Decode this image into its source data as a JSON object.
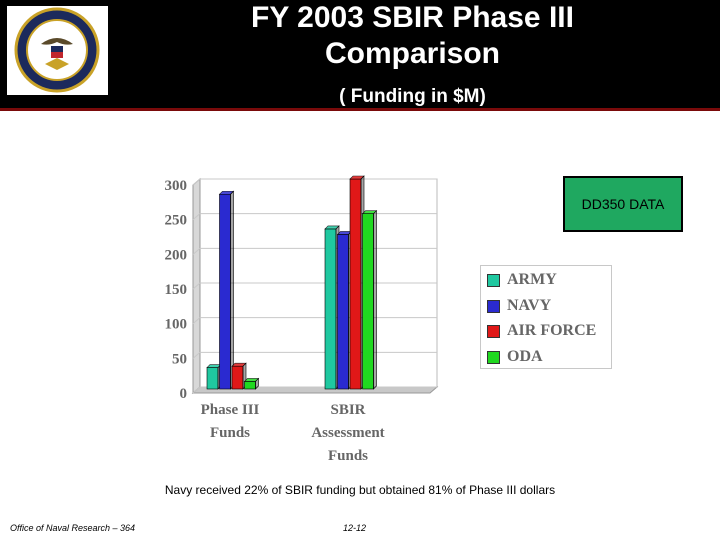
{
  "header": {
    "title_line1": "FY 2003 SBIR Phase III",
    "title_line2": "Comparison",
    "subtitle": "( Funding in $M)",
    "seal_text": "UNITED STATES NAVY OFFICE OF NAVAL RESEARCH"
  },
  "badge": {
    "label": "DD350 DATA"
  },
  "note": "Navy received 22% of SBIR funding but obtained 81% of Phase III dollars",
  "footer": {
    "org": "Office of Naval Research – 364",
    "page": "12-12"
  },
  "colors": {
    "ARMY": "#1fc8a0",
    "NAVY": "#2a2ad0",
    "AIR FORCE": "#e01818",
    "ODA": "#20d820",
    "badge": "#1fa860",
    "header_rule": "#7a0a0a"
  },
  "chart_data": {
    "type": "bar",
    "categories": [
      [
        "Phase III",
        "Funds"
      ],
      [
        "SBIR",
        "Assessment",
        "Funds"
      ]
    ],
    "series": [
      {
        "name": "ARMY",
        "values": [
          28,
          228
        ]
      },
      {
        "name": "NAVY",
        "values": [
          278,
          220
        ]
      },
      {
        "name": "AIR FORCE",
        "values": [
          30,
          300
        ]
      },
      {
        "name": "ODA",
        "values": [
          8,
          250
        ]
      }
    ],
    "yticks": [
      "0",
      "50",
      "100",
      "150",
      "200",
      "250",
      "300"
    ],
    "ylim": [
      0,
      300
    ],
    "grid": true,
    "legend_position": "right",
    "style": "3d"
  }
}
